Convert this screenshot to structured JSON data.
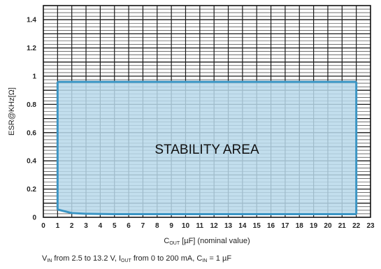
{
  "chart_data": {
    "type": "area",
    "area_label": "STABILITY AREA",
    "xlabel": {
      "main": "C",
      "sub": "OUT",
      "rest": " [µF] (nominal value)"
    },
    "ylabel": "ESR@KHz[Ω]",
    "xlim": [
      0,
      23
    ],
    "ylim": [
      0,
      1.5
    ],
    "x_ticks": [
      0,
      1,
      2,
      3,
      4,
      5,
      6,
      7,
      8,
      9,
      10,
      11,
      12,
      13,
      14,
      15,
      16,
      17,
      18,
      19,
      20,
      21,
      22,
      23
    ],
    "y_ticks": [
      0,
      0.2,
      0.4,
      0.6,
      0.8,
      1,
      1.2,
      1.4
    ],
    "y_tick_labels": [
      "0",
      "0.2",
      "0.4",
      "0.6",
      "0.8",
      "1",
      "1.2",
      "1.4"
    ],
    "grid": true,
    "upper_boundary": {
      "x": [
        1,
        22
      ],
      "y": [
        0.96,
        0.96
      ]
    },
    "lower_boundary": {
      "x": [
        1,
        2,
        3,
        5,
        10,
        15,
        22
      ],
      "y": [
        0.055,
        0.03,
        0.025,
        0.022,
        0.022,
        0.022,
        0.022
      ]
    },
    "fill_color": "#b7d8ea",
    "line_color": "#3b95c4"
  },
  "caption": [
    {
      "t": "V"
    },
    {
      "t": "IN",
      "sub": true
    },
    {
      "t": " from 2.5 to 13.2 V, I"
    },
    {
      "t": "OUT",
      "sub": true
    },
    {
      "t": " from 0 to 200 mA, C"
    },
    {
      "t": "IN",
      "sub": true
    },
    {
      "t": " = 1 µF"
    }
  ]
}
